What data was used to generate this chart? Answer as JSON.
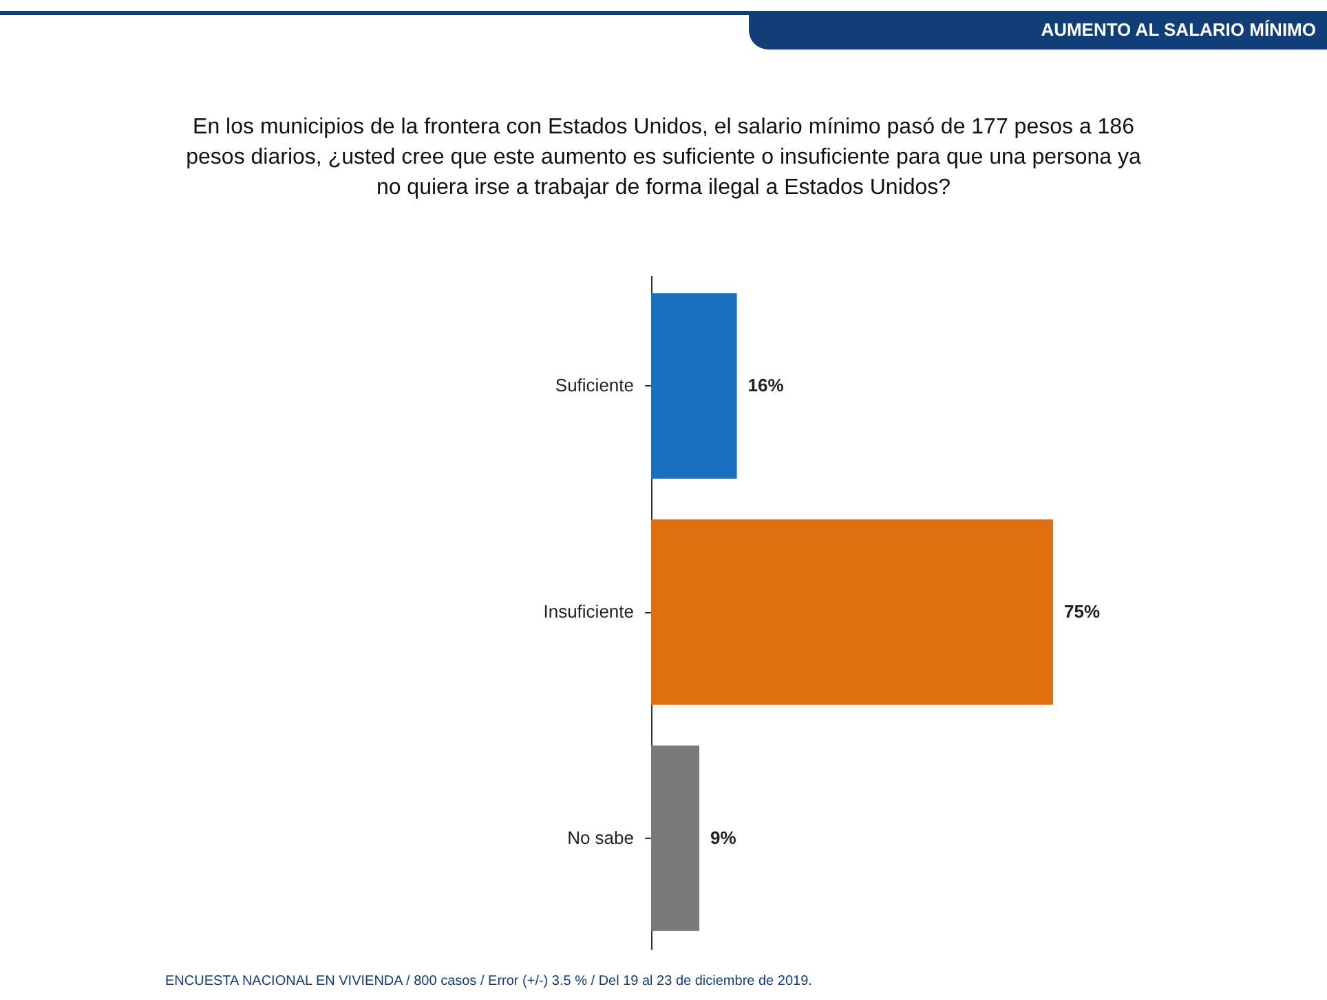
{
  "chart_data": {
    "type": "bar",
    "orientation": "horizontal",
    "title": "En los municipios de la frontera con Estados Unidos, el salario mínimo pasó de 177 pesos a 186 pesos diarios, ¿usted cree que este aumento es suficiente o insuficiente para que una persona ya no quiera irse a trabajar de forma ilegal a Estados Unidos?",
    "categories": [
      "Suficiente",
      "Insuficiente",
      "No sabe"
    ],
    "values": [
      16,
      75,
      9
    ],
    "value_labels": [
      "16%",
      "75%",
      "9%"
    ],
    "colors": [
      "#1a6fc0",
      "#e0700f",
      "#7a7a7a"
    ],
    "tick_labels": "y",
    "annotations": [
      "AUMENTO AL SALARIO MÍNIMO",
      "ENCUESTA NACIONAL EN VIVIENDA / 800 casos / Error (+/-) 3.5 % / Del 19 al 23 de diciembre de 2019."
    ]
  }
}
